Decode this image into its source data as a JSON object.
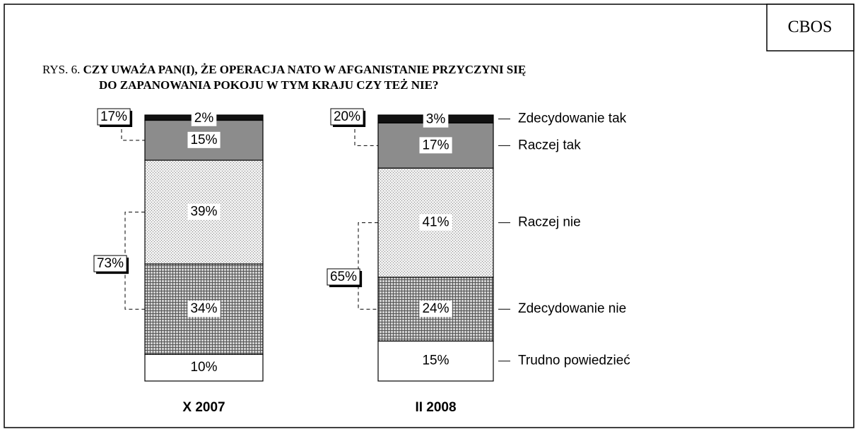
{
  "header": {
    "source": "CBOS"
  },
  "chart_data": {
    "type": "stacked_bar",
    "title_prefix": "RYS. 6.",
    "title": [
      "CZY UWAŻA PAN(I), ŻE OPERACJA NATO W AFGANISTANIE PRZYCZYNI SIĘ",
      "DO  ZAPANOWANIA POKOJU W TYM KRAJU CZY TEŻ NIE?"
    ],
    "categories": [
      "X 2007",
      "II 2008"
    ],
    "ylim": [
      0,
      100
    ],
    "series": [
      {
        "name": "Zdecydowanie tak",
        "color": "#111111",
        "values": [
          2,
          3
        ],
        "value_labels": [
          "2%",
          "3%"
        ]
      },
      {
        "name": "Raczej tak",
        "color": "#8c8c8c",
        "values": [
          15,
          17
        ],
        "value_labels": [
          "15%",
          "17%"
        ]
      },
      {
        "name": "Raczej nie",
        "color": "#d8d8d8",
        "pattern": "dots",
        "values": [
          39,
          41
        ],
        "value_labels": [
          "39%",
          "41%"
        ]
      },
      {
        "name": "Zdecydowanie nie",
        "color": "#9a9a9a",
        "pattern": "grid",
        "values": [
          34,
          24
        ],
        "value_labels": [
          "34%",
          "24%"
        ]
      },
      {
        "name": "Trudno powiedzieć",
        "color": "#ffffff",
        "values": [
          10,
          15
        ],
        "value_labels": [
          "10%",
          "15%"
        ]
      }
    ],
    "yes_total": {
      "values": [
        17,
        20
      ],
      "value_labels": [
        "17%",
        "20%"
      ]
    },
    "no_total": {
      "values": [
        73,
        65
      ],
      "value_labels": [
        "73%",
        "65%"
      ]
    }
  }
}
